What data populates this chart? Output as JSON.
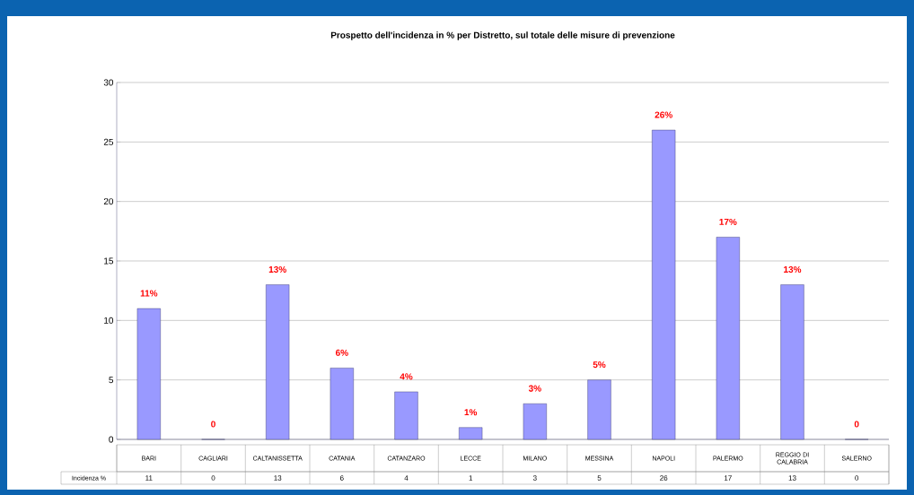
{
  "chart_data": {
    "type": "bar",
    "title": "Prospetto dell'incidenza in % per Distretto, sul totale delle misure di prevenzione",
    "categories": [
      "BARI",
      "CAGLIARI",
      "CALTANISSETTA",
      "CATANIA",
      "CATANZARO",
      "LECCE",
      "MILANO",
      "MESSINA",
      "NAPOLI",
      "PALERMO",
      "REGGIO DI CALABRIA",
      "SALERNO"
    ],
    "values": [
      11,
      0,
      13,
      6,
      4,
      1,
      3,
      5,
      26,
      17,
      13,
      0
    ],
    "data_labels": true,
    "color": "#9999ff",
    "ylim": [
      0,
      30
    ],
    "yticks": [
      0,
      5,
      10,
      15,
      20,
      25,
      30
    ],
    "grid": "y",
    "annotations": [
      "Incidenza %",
      {
        "text": "11%",
        "x": "BARI",
        "y": 11
      },
      {
        "text": "0",
        "x": "CAGLIARI",
        "y": 0
      },
      {
        "text": "13%",
        "x": "CALTANISSETTA",
        "y": 13
      },
      {
        "text": "6%",
        "x": "CATANIA",
        "y": 6
      },
      {
        "text": "4%",
        "x": "CATANZARO",
        "y": 4
      },
      {
        "text": "1%",
        "x": "LECCE",
        "y": 1
      },
      {
        "text": "3%",
        "x": "MILANO",
        "y": 3
      },
      {
        "text": "5%",
        "x": "MESSINA",
        "y": 5
      },
      {
        "text": "26%",
        "x": "NAPOLI",
        "y": 26
      },
      {
        "text": "17%",
        "x": "PALERMO",
        "y": 17
      },
      {
        "text": "13%",
        "x": "REGGIO DI CALABRIA",
        "y": 13
      },
      {
        "text": "0",
        "x": "SALERNO",
        "y": 0
      }
    ]
  }
}
